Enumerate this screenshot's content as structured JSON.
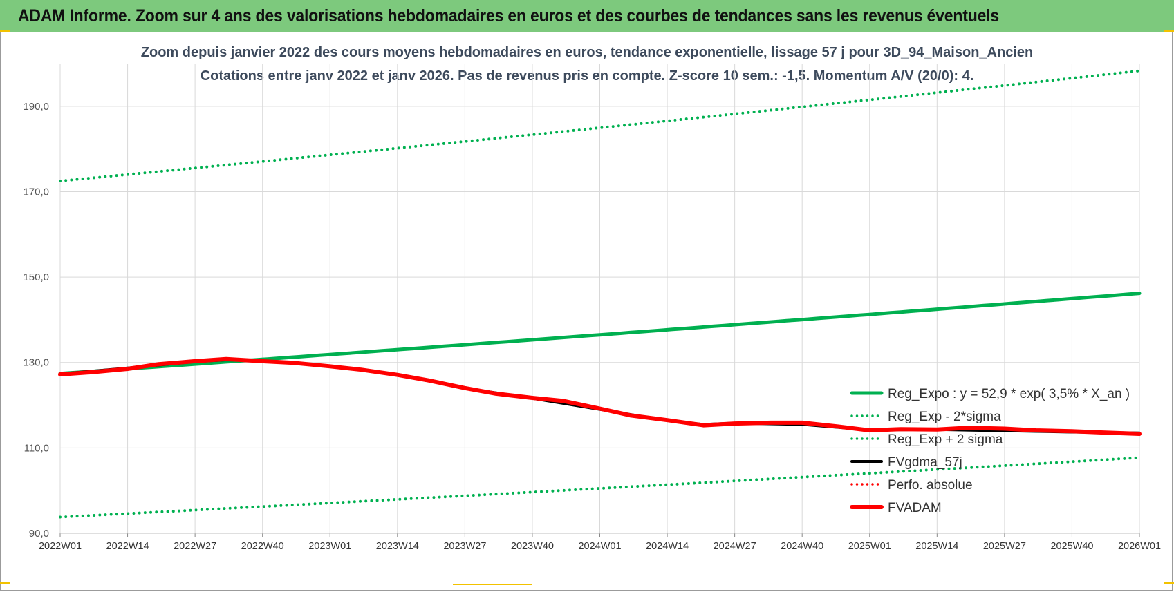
{
  "banner": {
    "title": "ADAM Informe. Zoom sur 4 ans des valorisations hebdomadaires en euros et des courbes de tendances sans les revenus éventuels"
  },
  "colors": {
    "banner_bg": "#7dc97d",
    "trend_green": "#00b050",
    "fvadam_red": "#ff0000",
    "gdma_black": "#000000",
    "grid": "#d9d9d9"
  },
  "chart_data": {
    "type": "line",
    "title": "Zoom depuis janvier 2022 des cours moyens hebdomadaires en euros, tendance exponentielle, lissage 57 j pour 3D_94_Maison_Ancien",
    "subtitle": "Cotations entre janv 2022 et janv 2026. Pas de revenus pris en compte. Z-score 10 sem.: -1,5. Momentum A/V (20/0): 4.",
    "ylim": [
      90,
      200
    ],
    "yticks": [
      90,
      110,
      130,
      150,
      170,
      190
    ],
    "ytick_labels": [
      "90,0",
      "110,0",
      "130,0",
      "150,0",
      "170,0",
      "190,0"
    ],
    "x_categories": [
      "2022W01",
      "2022W14",
      "2022W27",
      "2022W40",
      "2023W01",
      "2023W14",
      "2023W27",
      "2023W40",
      "2024W01",
      "2024W14",
      "2024W27",
      "2024W40",
      "2025W01",
      "2025W14",
      "2025W27",
      "2025W40",
      "2026W01"
    ],
    "grid": true,
    "legend_position": "right",
    "series": [
      {
        "name": "Reg_Expo : y = 52,9 * exp( 3,5% *  X_an )",
        "style": "solid-thick",
        "color": "#00b050",
        "x": [
          0,
          208
        ],
        "y": [
          127.4,
          146.2
        ]
      },
      {
        "name": "Reg_Exp - 2*sigma",
        "style": "dotted",
        "color": "#00b050",
        "x": [
          0,
          208
        ],
        "y": [
          93.8,
          107.7
        ]
      },
      {
        "name": "Reg_Exp + 2 sigma",
        "style": "dotted",
        "color": "#00b050",
        "x": [
          0,
          208
        ],
        "y": [
          172.5,
          198.3
        ]
      },
      {
        "name": "FVgdma_57j",
        "style": "solid",
        "color": "#000000",
        "x": [
          0,
          13,
          26,
          32,
          39,
          52,
          65,
          78,
          91,
          104,
          117,
          124,
          130,
          143,
          156,
          169,
          182,
          195,
          208
        ],
        "y": [
          127.3,
          128.7,
          130.2,
          130.6,
          130.4,
          129.2,
          127.1,
          124.0,
          121.6,
          119.0,
          116.4,
          115.5,
          115.8,
          115.5,
          114.2,
          114.3,
          114.0,
          113.7,
          113.5
        ]
      },
      {
        "name": "Perfo. absolue",
        "style": "dotted",
        "color": "#ff0000",
        "x": [],
        "y": []
      },
      {
        "name": "FVADAM",
        "style": "solid-thick",
        "color": "#ff0000",
        "x": [
          0,
          6,
          13,
          19,
          26,
          32,
          39,
          45,
          52,
          58,
          65,
          71,
          78,
          84,
          91,
          97,
          104,
          110,
          117,
          124,
          130,
          137,
          143,
          150,
          156,
          162,
          169,
          175,
          182,
          188,
          195,
          201,
          208
        ],
        "y": [
          127.2,
          127.7,
          128.5,
          129.6,
          130.3,
          130.8,
          130.3,
          129.9,
          129.1,
          128.3,
          127.1,
          125.8,
          124.0,
          122.7,
          121.7,
          121.0,
          119.2,
          117.6,
          116.5,
          115.3,
          115.7,
          115.9,
          115.9,
          115.0,
          114.1,
          114.4,
          114.3,
          114.7,
          114.5,
          114.1,
          113.9,
          113.6,
          113.3
        ]
      }
    ]
  }
}
